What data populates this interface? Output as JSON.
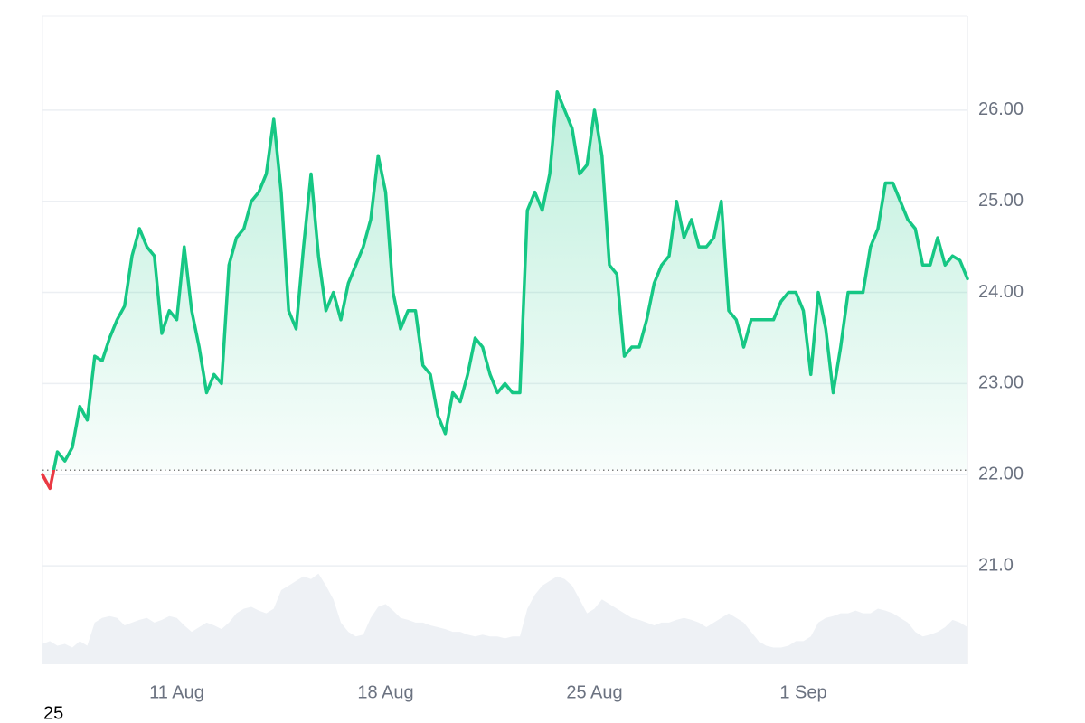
{
  "chart_data": {
    "type": "line",
    "values": [
      22.0,
      21.85,
      22.25,
      22.15,
      22.3,
      22.75,
      22.6,
      23.3,
      23.25,
      23.5,
      23.7,
      23.85,
      24.4,
      24.7,
      24.5,
      24.4,
      23.55,
      23.8,
      23.7,
      24.5,
      23.8,
      23.4,
      22.9,
      23.1,
      23.0,
      24.3,
      24.6,
      24.7,
      25.0,
      25.1,
      25.3,
      25.9,
      25.1,
      23.8,
      23.6,
      24.5,
      25.3,
      24.4,
      23.8,
      24.0,
      23.7,
      24.1,
      24.3,
      24.5,
      24.8,
      25.5,
      25.1,
      24.0,
      23.6,
      23.8,
      23.8,
      23.2,
      23.1,
      22.65,
      22.45,
      22.9,
      22.8,
      23.1,
      23.5,
      23.4,
      23.1,
      22.9,
      23.0,
      22.9,
      22.9,
      24.9,
      25.1,
      24.9,
      25.3,
      26.2,
      26.0,
      25.8,
      25.3,
      25.4,
      26.0,
      25.5,
      24.3,
      24.2,
      23.3,
      23.4,
      23.4,
      23.7,
      24.1,
      24.3,
      24.4,
      25.0,
      24.6,
      24.8,
      24.5,
      24.5,
      24.6,
      25.0,
      23.8,
      23.7,
      23.4,
      23.7,
      23.7,
      23.7,
      23.7,
      23.9,
      24.0,
      24.0,
      23.8,
      23.1,
      24.0,
      23.6,
      22.9,
      23.4,
      24.0,
      24.0,
      24.0,
      24.5,
      24.7,
      25.2,
      25.2,
      25.0,
      24.8,
      24.7,
      24.3,
      24.3,
      24.6,
      24.3,
      24.4,
      24.35,
      24.15
    ],
    "categories": [
      null,
      null,
      null,
      null,
      null,
      null,
      null,
      null,
      null,
      null,
      null,
      null,
      null,
      null,
      null,
      null,
      null,
      null,
      "11 Aug",
      null,
      null,
      null,
      null,
      null,
      null,
      null,
      null,
      null,
      null,
      null,
      null,
      null,
      null,
      null,
      null,
      null,
      null,
      null,
      null,
      null,
      null,
      null,
      null,
      null,
      null,
      null,
      "18 Aug",
      null,
      null,
      null,
      null,
      null,
      null,
      null,
      null,
      null,
      null,
      null,
      null,
      null,
      null,
      null,
      null,
      null,
      null,
      null,
      null,
      null,
      null,
      null,
      null,
      null,
      null,
      null,
      "25 Aug",
      null,
      null,
      null,
      null,
      null,
      null,
      null,
      null,
      null,
      null,
      null,
      null,
      null,
      null,
      null,
      null,
      null,
      null,
      null,
      null,
      null,
      null,
      null,
      null,
      null,
      null,
      null,
      "1 Sep",
      null,
      null,
      null,
      null,
      null,
      null,
      null,
      null,
      null,
      null,
      null,
      null,
      null,
      null,
      null,
      null,
      null,
      null,
      null,
      null,
      null,
      null
    ],
    "color": "#16c784",
    "down_color": "#ea3943",
    "baseline": 22.05,
    "volume": [
      0.22,
      0.25,
      0.2,
      0.22,
      0.18,
      0.25,
      0.2,
      0.45,
      0.5,
      0.52,
      0.5,
      0.42,
      0.45,
      0.48,
      0.5,
      0.45,
      0.48,
      0.52,
      0.5,
      0.42,
      0.35,
      0.4,
      0.45,
      0.42,
      0.38,
      0.45,
      0.55,
      0.6,
      0.62,
      0.58,
      0.55,
      0.6,
      0.8,
      0.85,
      0.9,
      0.95,
      0.92,
      0.98,
      0.85,
      0.7,
      0.45,
      0.35,
      0.3,
      0.32,
      0.5,
      0.62,
      0.65,
      0.58,
      0.5,
      0.48,
      0.45,
      0.45,
      0.42,
      0.4,
      0.38,
      0.35,
      0.35,
      0.32,
      0.3,
      0.32,
      0.3,
      0.3,
      0.28,
      0.3,
      0.3,
      0.6,
      0.75,
      0.85,
      0.9,
      0.95,
      0.92,
      0.85,
      0.7,
      0.55,
      0.6,
      0.7,
      0.65,
      0.6,
      0.55,
      0.5,
      0.48,
      0.45,
      0.42,
      0.45,
      0.45,
      0.48,
      0.5,
      0.48,
      0.45,
      0.4,
      0.45,
      0.5,
      0.55,
      0.5,
      0.45,
      0.35,
      0.25,
      0.2,
      0.18,
      0.18,
      0.2,
      0.25,
      0.25,
      0.3,
      0.45,
      0.5,
      0.52,
      0.55,
      0.55,
      0.58,
      0.55,
      0.55,
      0.6,
      0.58,
      0.55,
      0.5,
      0.45,
      0.35,
      0.3,
      0.32,
      0.35,
      0.4,
      0.48,
      0.45,
      0.4
    ],
    "volume_color": "#eef1f5",
    "y2lim": [
      0,
      7
    ],
    "ylim": [
      19.92,
      27.03
    ],
    "yticks": [
      {
        "value": 21,
        "label": "21.0"
      },
      {
        "value": 22,
        "label": "22.00"
      },
      {
        "value": 23,
        "label": "23.00"
      },
      {
        "value": 24,
        "label": "24.00"
      },
      {
        "value": 25,
        "label": "25.00"
      },
      {
        "value": 26,
        "label": "26.00"
      }
    ],
    "grid": true,
    "footer_text": "25"
  }
}
